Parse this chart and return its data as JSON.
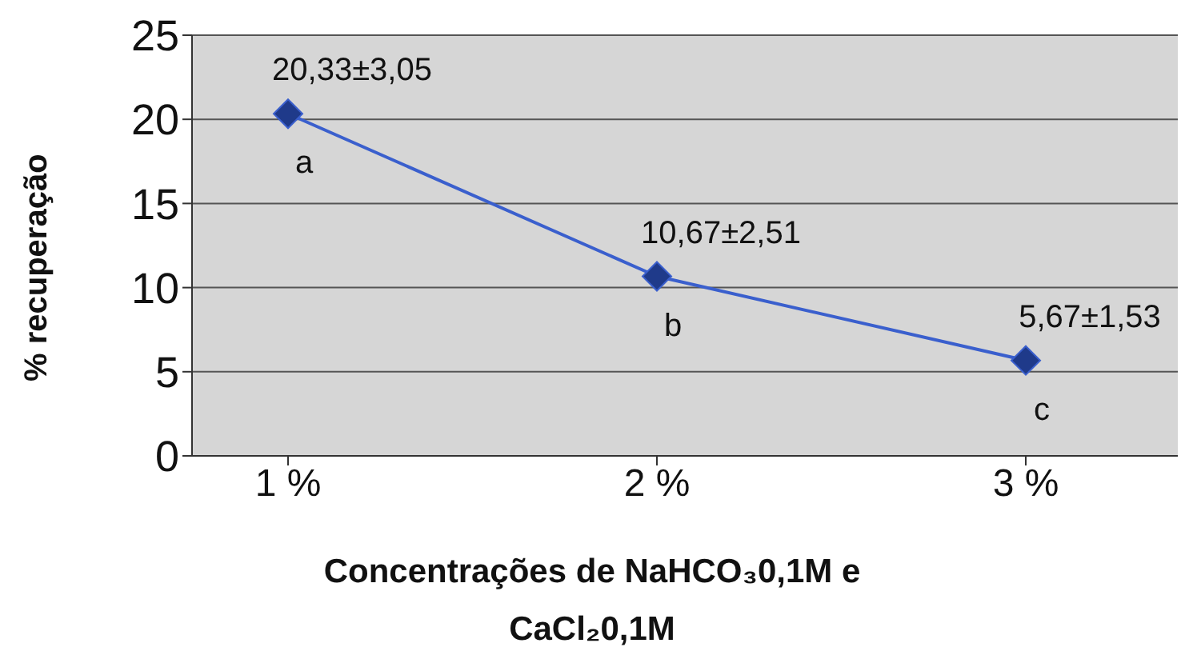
{
  "chart_data": {
    "type": "line",
    "xlabel": "Concentrações de NaHCO₃0,1M e CaCl₂0,1M",
    "ylabel": "% recuperação",
    "categories": [
      "1 %",
      "2 %",
      "3 %"
    ],
    "series": [
      {
        "color": "#3a5fcd",
        "values": [
          20.33,
          10.67,
          5.67
        ]
      }
    ],
    "ylim": [
      0,
      25
    ],
    "yticks": [
      0,
      5,
      10,
      15,
      20,
      25
    ],
    "grid": "y",
    "marker": "diamond",
    "line_style": "solid",
    "legend": false,
    "annotations": [
      {
        "text": "20,33±3,05",
        "x": "1 %",
        "y": 20.33
      },
      {
        "text": "a",
        "x": "1 %",
        "y": 20.33
      },
      {
        "text": "10,67±2,51",
        "x": "2 %",
        "y": 10.67
      },
      {
        "text": "b",
        "x": "2 %",
        "y": 10.67
      },
      {
        "text": "5,67±1,53",
        "x": "3 %",
        "y": 5.67
      },
      {
        "text": "c",
        "x": "3 %",
        "y": 5.67
      }
    ]
  }
}
